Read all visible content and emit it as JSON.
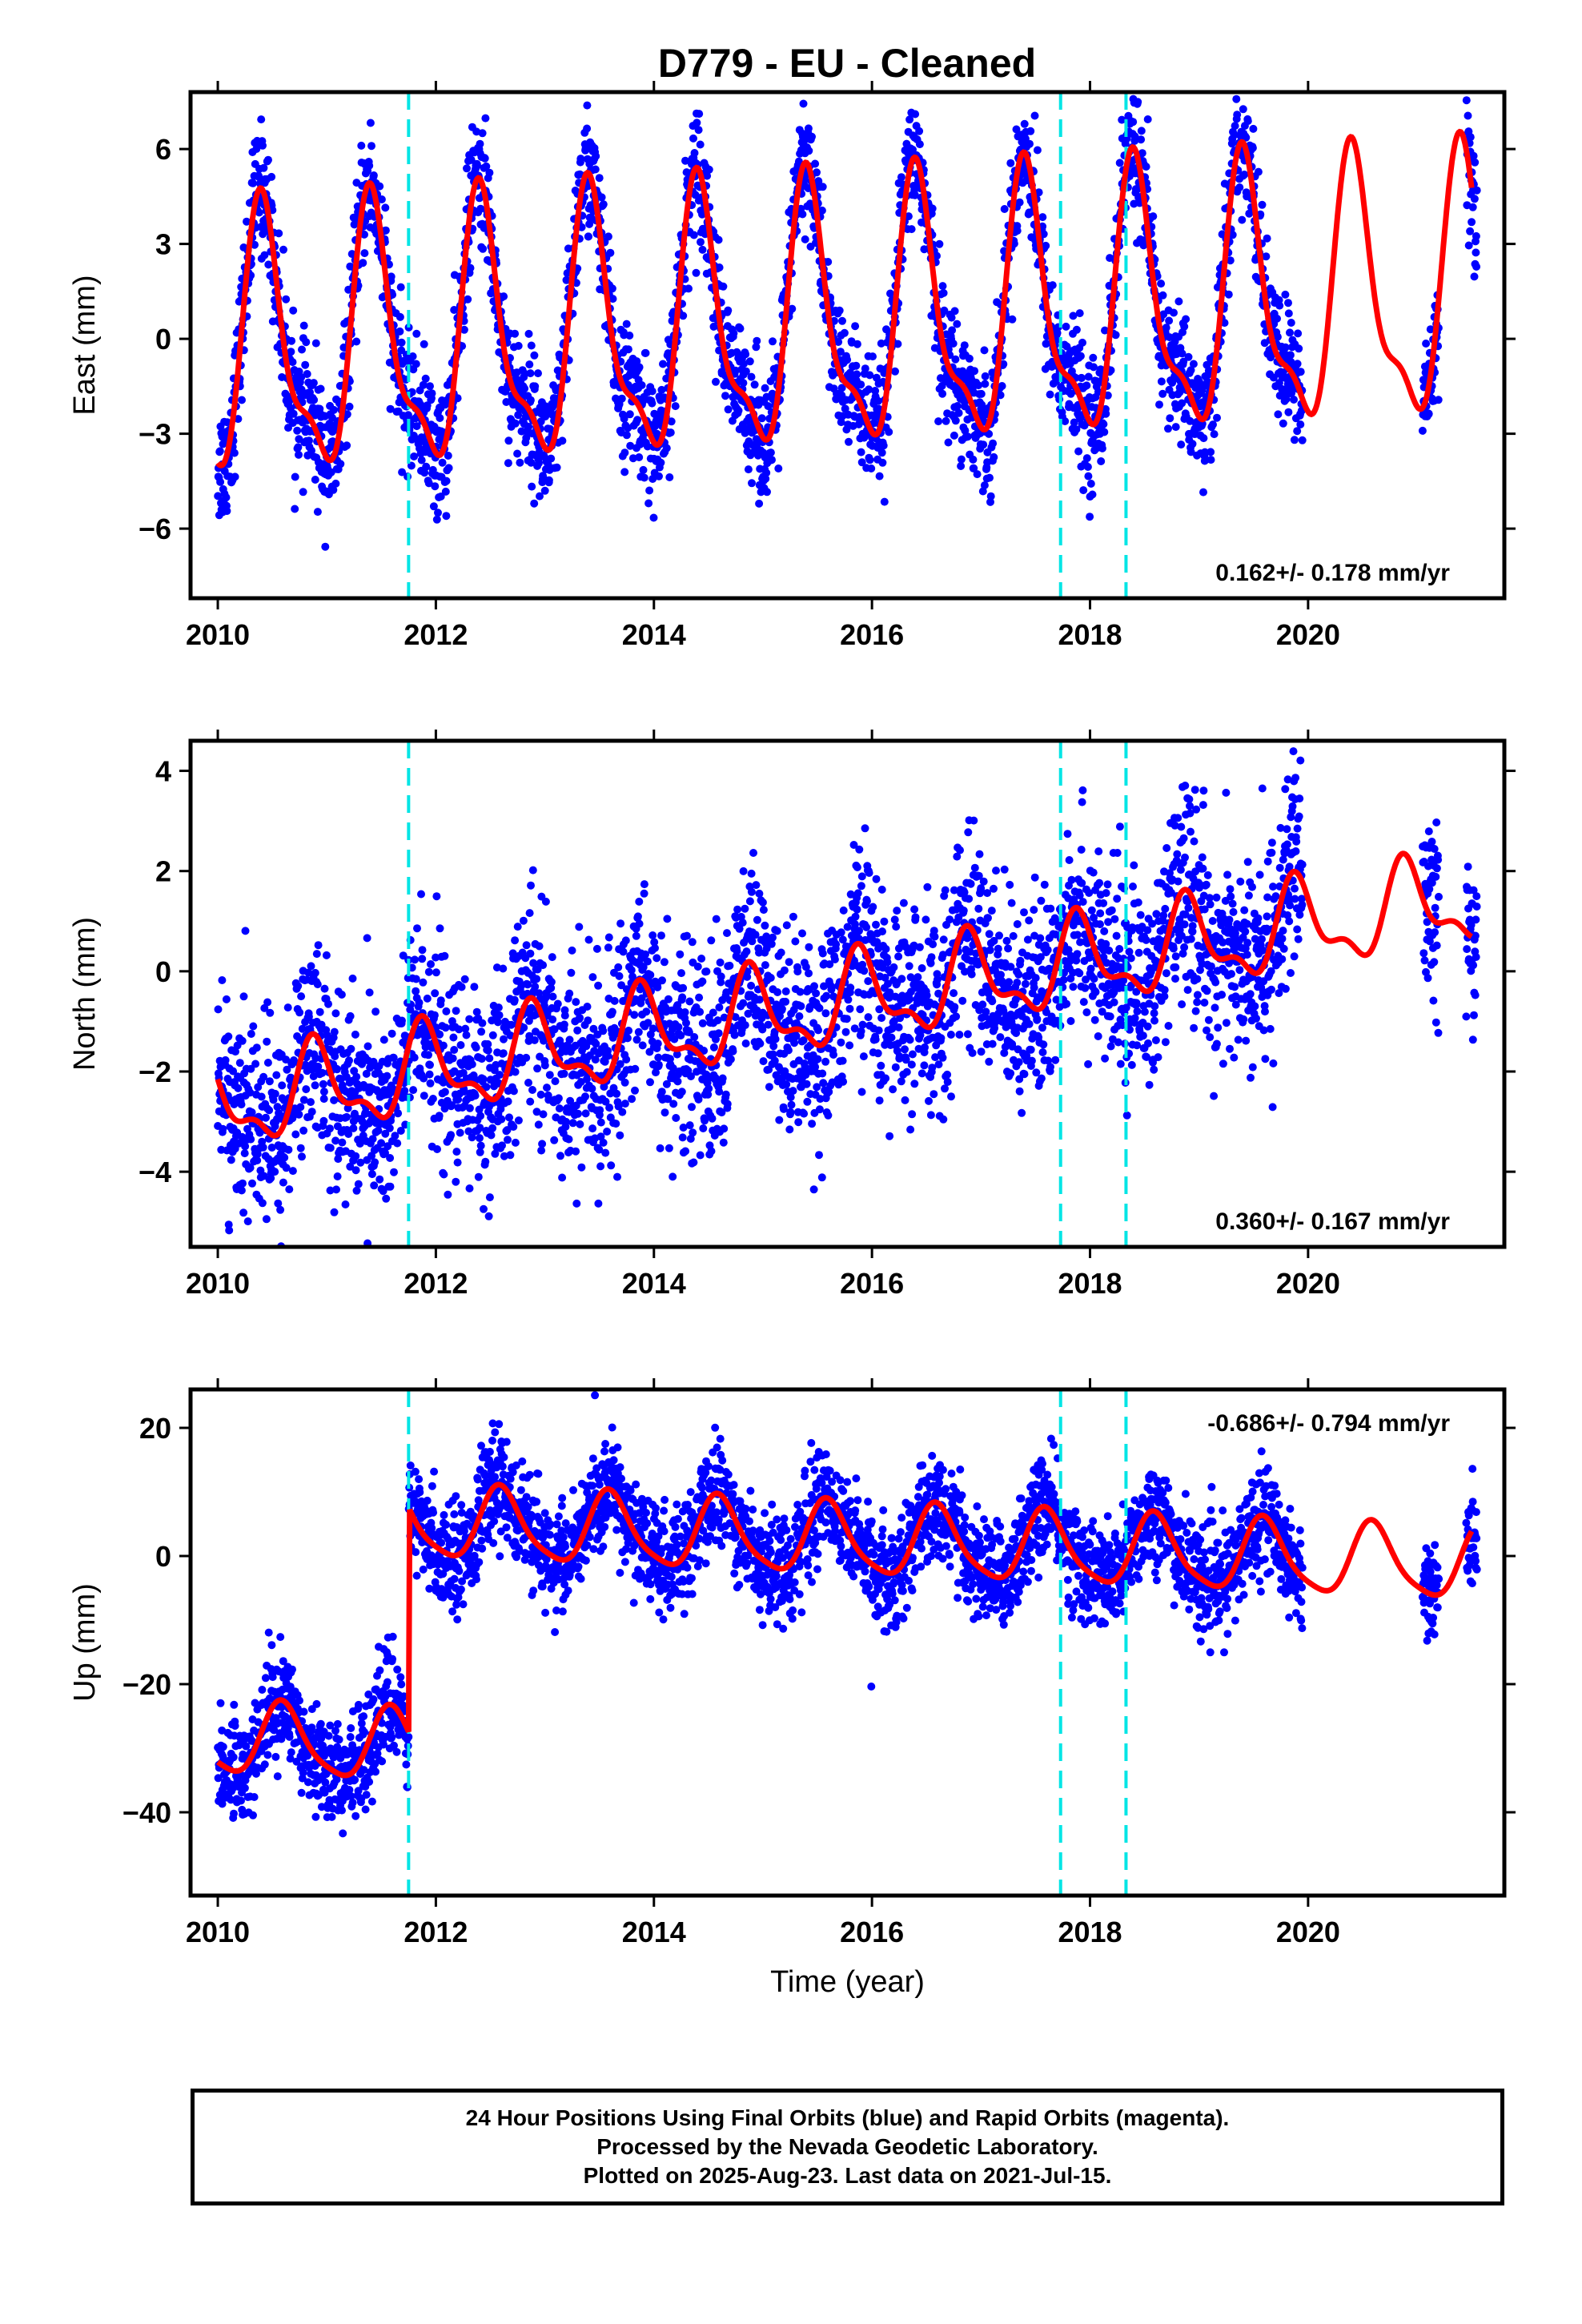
{
  "title": "D779  - EU - Cleaned",
  "colors": {
    "points": "#0000ff",
    "model": "#ff0000",
    "break_lines": "#00e5e5",
    "frame": "#000000"
  },
  "chart_data": [
    {
      "type": "scatter",
      "component": "east",
      "ylabel": "East (mm)",
      "xlabel": "",
      "xlim": [
        2009.75,
        2021.8
      ],
      "ylim": [
        -8.2,
        7.8
      ],
      "xticks": [
        2010,
        2012,
        2014,
        2016,
        2018,
        2020
      ],
      "xtick_labels": [
        "2010",
        "2012",
        "2014",
        "2016",
        "2018",
        "2020"
      ],
      "yticks": [
        -6,
        -3,
        0,
        3,
        6
      ],
      "ytick_labels": [
        "−6",
        "−3",
        "0",
        "3",
        "6"
      ],
      "velocity_label": "0.162+/- 0.178 mm/yr",
      "velocity_position": "bottom-right",
      "break_lines_x": [
        2011.75,
        2017.73,
        2018.33
      ],
      "model": {
        "amplitude": 3.9,
        "offset": 0.35,
        "rate": 0.162,
        "peak_phase": 0.42,
        "semi_annual": 0.35
      },
      "data_range": [
        2010.0,
        2019.95
      ],
      "extra_data_ranges": [
        [
          2021.05,
          2021.2
        ],
        [
          2021.45,
          2021.55
        ]
      ],
      "scatter_noise": 1.0
    },
    {
      "type": "scatter",
      "component": "north",
      "ylabel": "North (mm)",
      "xlabel": "",
      "xlim": [
        2009.75,
        2021.8
      ],
      "ylim": [
        -5.5,
        4.6
      ],
      "xticks": [
        2010,
        2012,
        2014,
        2016,
        2018,
        2020
      ],
      "xtick_labels": [
        "2010",
        "2012",
        "2014",
        "2016",
        "2018",
        "2020"
      ],
      "yticks": [
        -4,
        -2,
        0,
        2,
        4
      ],
      "ytick_labels": [
        "−4",
        "−2",
        "0",
        "2",
        "4"
      ],
      "velocity_label": "0.360+/- 0.167 mm/yr",
      "velocity_position": "bottom-right",
      "break_lines_x": [
        2011.75,
        2017.73,
        2018.33
      ],
      "model": {
        "amplitude": 0.8,
        "offset": -0.9,
        "rate": 0.36,
        "peak_phase": 0.9,
        "semi_annual": 0.45
      },
      "data_range": [
        2010.0,
        2019.95
      ],
      "extra_data_ranges": [
        [
          2021.05,
          2021.2
        ],
        [
          2021.45,
          2021.55
        ]
      ],
      "scatter_noise": 1.0
    },
    {
      "type": "scatter",
      "component": "up",
      "ylabel": "Up (mm)",
      "xlabel": "Time (year)",
      "xlim": [
        2009.75,
        2021.8
      ],
      "ylim": [
        -53,
        26
      ],
      "xticks": [
        2010,
        2012,
        2014,
        2016,
        2018,
        2020
      ],
      "xtick_labels": [
        "2010",
        "2012",
        "2014",
        "2016",
        "2018",
        "2020"
      ],
      "yticks": [
        -40,
        -20,
        0,
        20
      ],
      "ytick_labels": [
        "−40",
        "−20",
        "0",
        "20"
      ],
      "velocity_label": "-0.686+/- 0.794 mm/yr",
      "velocity_position": "top-right",
      "break_lines_x": [
        2011.75,
        2017.73,
        2018.33
      ],
      "offset_step": {
        "x": 2011.75,
        "before": -32,
        "after": 3
      },
      "model": {
        "amplitude": 5.5,
        "offset": 0,
        "rate": -0.686,
        "peak_phase": 0.6,
        "semi_annual": 0.2
      },
      "data_range": [
        2010.0,
        2019.95
      ],
      "extra_data_ranges": [
        [
          2021.05,
          2021.2
        ],
        [
          2021.45,
          2021.55
        ]
      ],
      "scatter_noise": 4.0
    }
  ],
  "caption": {
    "line1": "24 Hour Positions Using Final Orbits (blue) and Rapid Orbits (magenta).",
    "line2": "Processed by the Nevada Geodetic Laboratory.",
    "line3": "Plotted on 2025-Aug-23. Last data on 2021-Jul-15."
  }
}
